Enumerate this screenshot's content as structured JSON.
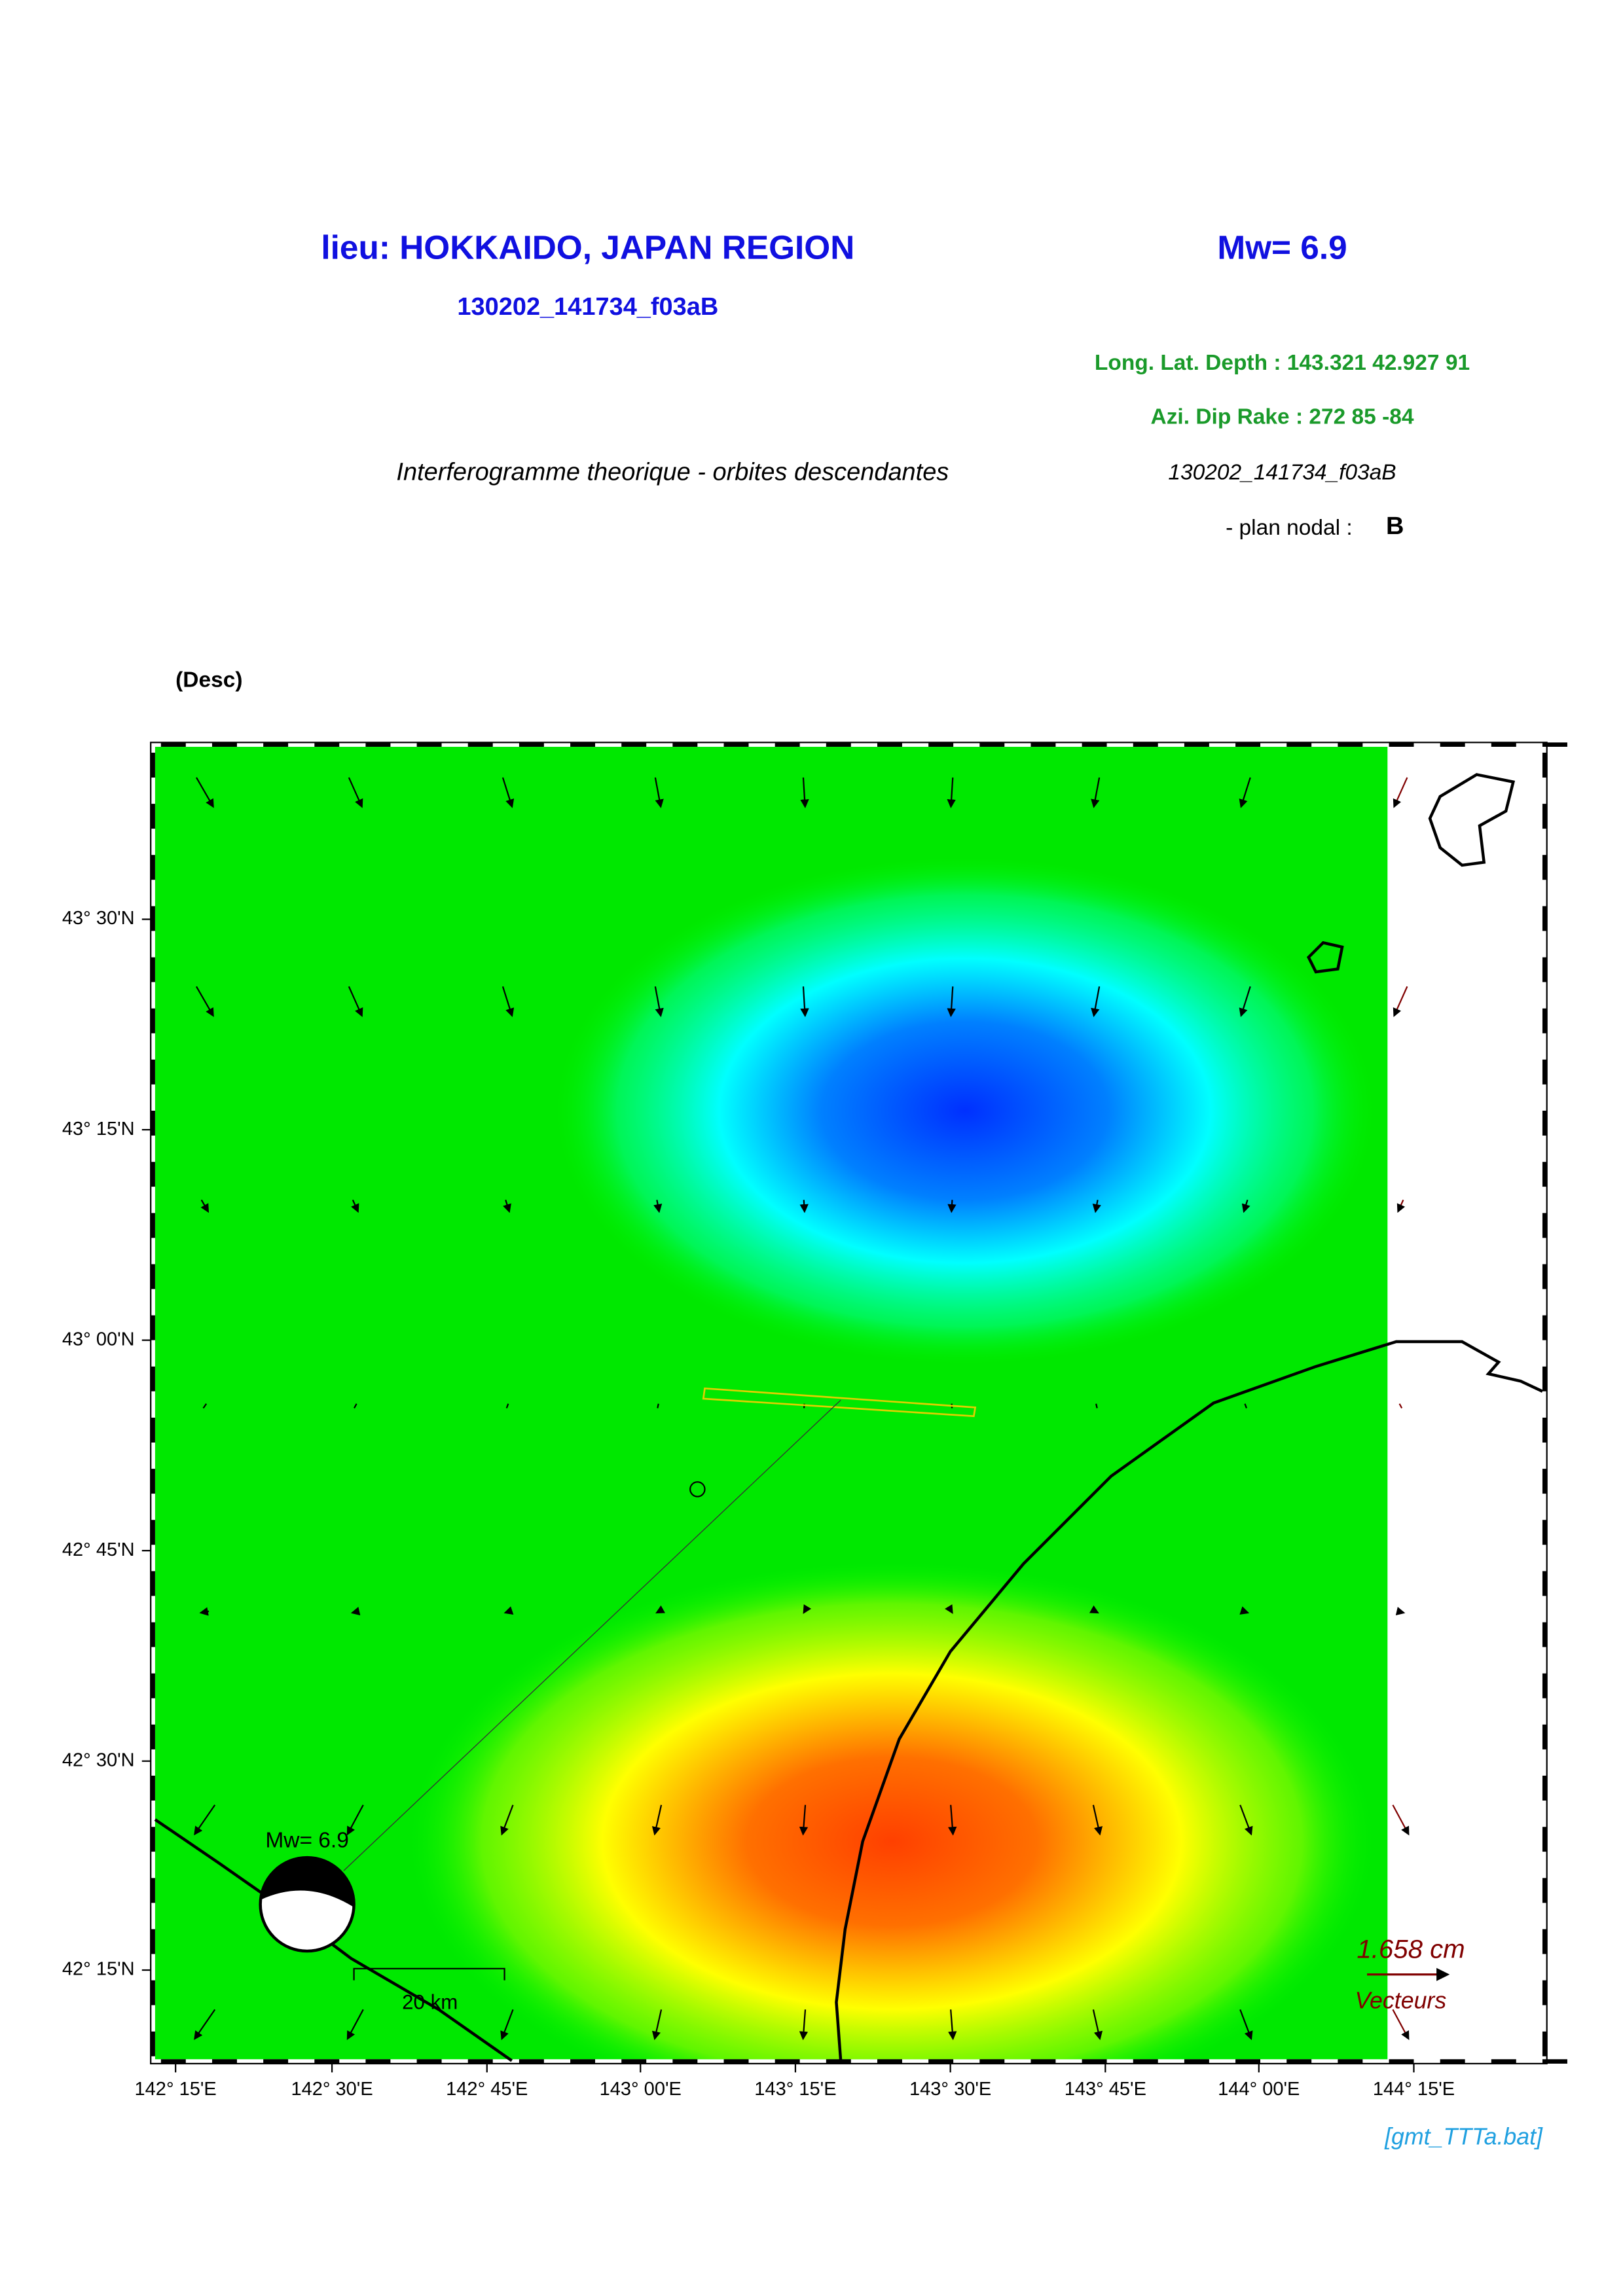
{
  "header": {
    "title": "lieu: HOKKAIDO, JAPAN REGION",
    "magnitude": "Mw= 6.9",
    "event_id": "130202_141734_f03aB",
    "location": "Long. Lat. Depth : 143.321 42.927 91",
    "mechanism": "Azi.  Dip   Rake :  272 85 -84",
    "subtitle": "Interferogramme theorique - orbites descendantes",
    "event_id_2": "130202_141734_f03aB",
    "nodal_label": "- plan nodal :",
    "nodal_value": "B"
  },
  "map": {
    "label": "(Desc)",
    "lat_ticks": [
      "43° 30'N",
      "43° 15'N",
      "43° 00'N",
      "42° 45'N",
      "42° 30'N",
      "42° 15'N"
    ],
    "lon_ticks": [
      "142° 15'E",
      "142° 30'E",
      "142° 45'E",
      "143° 00'E",
      "143° 15'E",
      "143° 30'E",
      "143° 45'E",
      "144° 00'E",
      "144° 15'E"
    ],
    "beachball_label": "Mw= 6.9",
    "scale_label": "20 km",
    "vector_scale": "1.658  cm",
    "vector_label": "Vecteurs"
  },
  "footer": "[gmt_TTTa.bat]"
}
